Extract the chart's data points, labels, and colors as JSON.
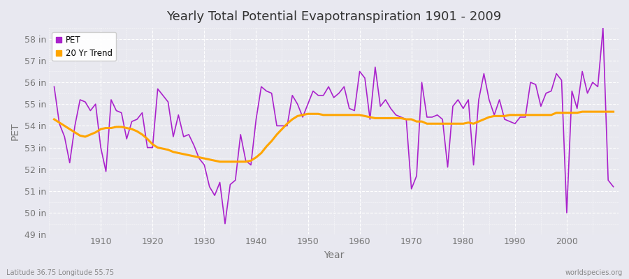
{
  "title": "Yearly Total Potential Evapotranspiration 1901 - 2009",
  "xlabel": "Year",
  "ylabel": "PET",
  "bottom_left": "Latitude 36.75 Longitude 55.75",
  "bottom_right": "worldspecies.org",
  "ylim": [
    49,
    58.5
  ],
  "yticks": [
    49,
    50,
    51,
    52,
    53,
    54,
    55,
    56,
    57,
    58
  ],
  "ytick_labels": [
    "49 in",
    "50 in",
    "51 in",
    "52 in",
    "53 in",
    "54 in",
    "55 in",
    "56 in",
    "57 in",
    "58 in"
  ],
  "xlim": [
    1900,
    2010
  ],
  "years": [
    1901,
    1902,
    1903,
    1904,
    1905,
    1906,
    1907,
    1908,
    1909,
    1910,
    1911,
    1912,
    1913,
    1914,
    1915,
    1916,
    1917,
    1918,
    1919,
    1920,
    1921,
    1922,
    1923,
    1924,
    1925,
    1926,
    1927,
    1928,
    1929,
    1930,
    1931,
    1932,
    1933,
    1934,
    1935,
    1936,
    1937,
    1938,
    1939,
    1940,
    1941,
    1942,
    1943,
    1944,
    1945,
    1946,
    1947,
    1948,
    1949,
    1950,
    1951,
    1952,
    1953,
    1954,
    1955,
    1956,
    1957,
    1958,
    1959,
    1960,
    1961,
    1962,
    1963,
    1964,
    1965,
    1966,
    1967,
    1968,
    1969,
    1970,
    1971,
    1972,
    1973,
    1974,
    1975,
    1976,
    1977,
    1978,
    1979,
    1980,
    1981,
    1982,
    1983,
    1984,
    1985,
    1986,
    1987,
    1988,
    1989,
    1990,
    1991,
    1992,
    1993,
    1994,
    1995,
    1996,
    1997,
    1998,
    1999,
    2000,
    2001,
    2002,
    2003,
    2004,
    2005,
    2006,
    2007,
    2008,
    2009
  ],
  "pet": [
    55.8,
    54.1,
    53.5,
    52.3,
    54.0,
    55.2,
    55.1,
    54.7,
    55.0,
    53.0,
    51.9,
    55.2,
    54.7,
    54.6,
    53.4,
    54.2,
    54.3,
    54.6,
    53.0,
    53.0,
    55.7,
    55.4,
    55.1,
    53.5,
    54.5,
    53.5,
    53.6,
    53.1,
    52.5,
    52.2,
    51.2,
    50.8,
    51.4,
    49.5,
    51.3,
    51.5,
    53.6,
    52.4,
    52.2,
    54.3,
    55.8,
    55.6,
    55.5,
    54.0,
    54.0,
    54.0,
    55.4,
    55.0,
    54.4,
    55.0,
    55.6,
    55.4,
    55.4,
    55.8,
    55.3,
    55.5,
    55.8,
    54.8,
    54.7,
    56.5,
    56.2,
    54.3,
    56.7,
    54.9,
    55.2,
    54.8,
    54.5,
    54.4,
    54.3,
    51.1,
    51.7,
    56.0,
    54.4,
    54.4,
    54.5,
    54.3,
    52.1,
    54.9,
    55.2,
    54.8,
    55.2,
    52.2,
    55.2,
    56.4,
    55.2,
    54.5,
    55.2,
    54.3,
    54.2,
    54.1,
    54.4,
    54.4,
    56.0,
    55.9,
    54.9,
    55.5,
    55.6,
    56.4,
    56.1,
    50.0,
    55.6,
    54.8,
    56.5,
    55.5,
    56.0,
    55.8,
    58.5,
    51.5,
    51.2
  ],
  "trend": [
    54.3,
    54.15,
    54.0,
    53.85,
    53.7,
    53.55,
    53.5,
    53.6,
    53.7,
    53.85,
    53.9,
    53.9,
    53.95,
    53.95,
    53.9,
    53.85,
    53.75,
    53.6,
    53.4,
    53.15,
    53.0,
    52.95,
    52.9,
    52.8,
    52.75,
    52.7,
    52.65,
    52.6,
    52.55,
    52.5,
    52.45,
    52.4,
    52.35,
    52.35,
    52.35,
    52.35,
    52.35,
    52.35,
    52.4,
    52.55,
    52.75,
    53.05,
    53.3,
    53.6,
    53.85,
    54.1,
    54.3,
    54.45,
    54.5,
    54.55,
    54.55,
    54.55,
    54.5,
    54.5,
    54.5,
    54.5,
    54.5,
    54.5,
    54.5,
    54.5,
    54.45,
    54.4,
    54.35,
    54.35,
    54.35,
    54.35,
    54.35,
    54.35,
    54.3,
    54.3,
    54.2,
    54.2,
    54.1,
    54.1,
    54.1,
    54.1,
    54.1,
    54.1,
    54.1,
    54.1,
    54.15,
    54.1,
    54.2,
    54.3,
    54.4,
    54.45,
    54.45,
    54.45,
    54.5,
    54.5,
    54.5,
    54.5,
    54.5,
    54.5,
    54.5,
    54.5,
    54.5,
    54.6,
    54.6,
    54.6,
    54.6,
    54.6,
    54.65,
    54.65,
    54.65,
    54.65,
    54.65,
    54.65,
    54.65
  ],
  "pet_color": "#aa22cc",
  "trend_color": "#FFA500",
  "bg_color": "#e8e8f0",
  "plot_bg_color": "#e8e8ef",
  "grid_color": "#ffffff",
  "title_fontsize": 13,
  "axis_label_fontsize": 10,
  "tick_fontsize": 9,
  "tick_color": "#777777",
  "title_color": "#333333"
}
